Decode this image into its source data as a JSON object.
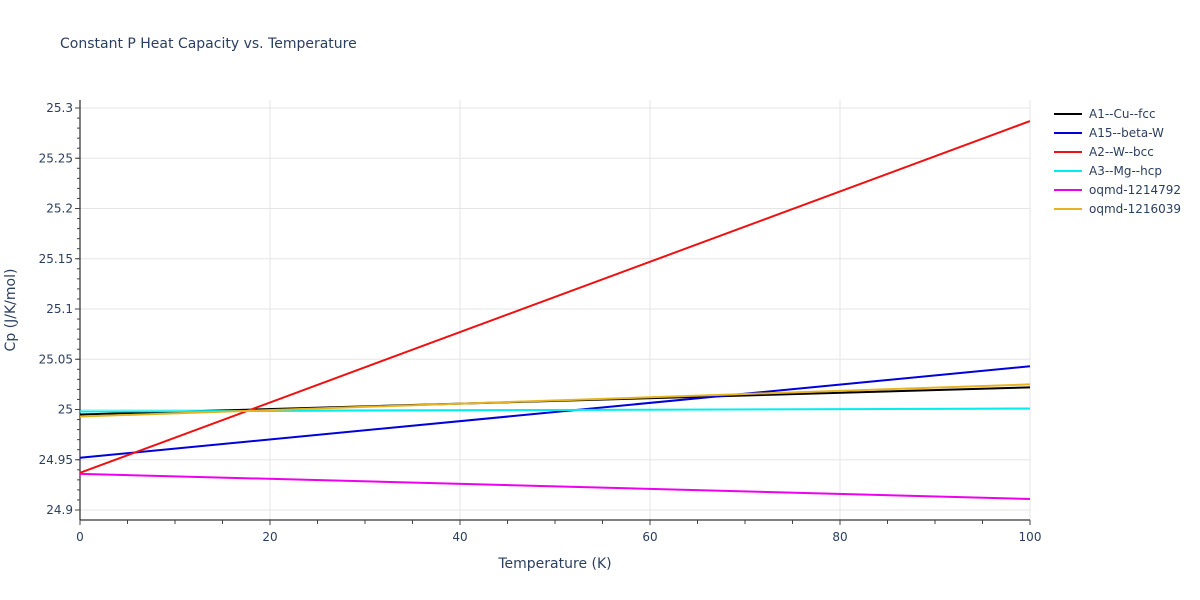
{
  "chart": {
    "title": "Constant P Heat Capacity vs. Temperature",
    "xlabel": "Temperature (K)",
    "ylabel": "Cp (J/K/mol)"
  },
  "chart_data": {
    "type": "line",
    "title": "Constant P Heat Capacity vs. Temperature",
    "xlabel": "Temperature (K)",
    "ylabel": "Cp (J/K/mol)",
    "xlim": [
      0,
      100
    ],
    "ylim": [
      24.89,
      25.305
    ],
    "xticks": [
      0,
      20,
      40,
      60,
      80,
      100
    ],
    "xtick_labels": [
      "0",
      "20",
      "40",
      "60",
      "80",
      "100"
    ],
    "yticks": [
      24.9,
      24.95,
      25.0,
      25.05,
      25.1,
      25.15,
      25.2,
      25.25,
      25.3
    ],
    "ytick_labels": [
      "24.9",
      "24.95",
      "25",
      "25.05",
      "25.1",
      "25.15",
      "25.2",
      "25.25",
      "25.3"
    ],
    "grid": true,
    "legend_position": "right",
    "x": [
      0,
      100
    ],
    "series": [
      {
        "name": "A1--Cu--fcc",
        "color": "#000000",
        "values": [
          24.995,
          25.022
        ]
      },
      {
        "name": "A15--beta-W",
        "color": "#0000dd",
        "values": [
          24.952,
          25.043
        ]
      },
      {
        "name": "A2--W--bcc",
        "color": "#ee1111",
        "values": [
          24.937,
          25.287
        ]
      },
      {
        "name": "A3--Mg--hcp",
        "color": "#00eeee",
        "values": [
          24.998,
          25.001
        ]
      },
      {
        "name": "oqmd-1214792",
        "color": "#ee00ee",
        "values": [
          24.936,
          24.911
        ]
      },
      {
        "name": "oqmd-1216039",
        "color": "#e6b422",
        "values": [
          24.993,
          25.025
        ]
      }
    ]
  }
}
